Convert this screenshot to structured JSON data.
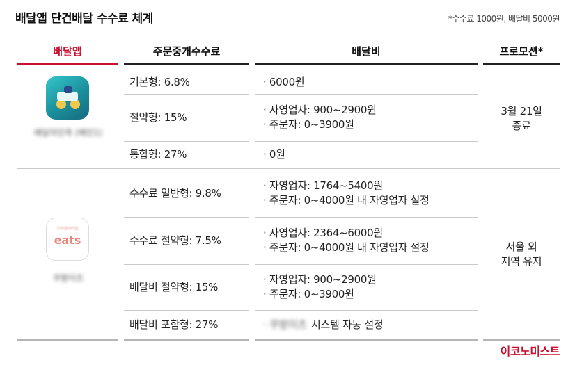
{
  "title": "배달앱 단건배달 수수료 체계",
  "note": "*수수료 1000원, 배달비 5000원",
  "headers": {
    "app": "배달앱",
    "fee": "주문중개수수료",
    "delivery": "배달비",
    "promo": "프로모션*"
  },
  "apps": [
    {
      "name": "배달의민족 (배민1)",
      "icon": "baemin-app-icon",
      "promo": "3월 21일 종료",
      "promo_lines": [
        "3월 21일",
        "종료"
      ],
      "rows": [
        {
          "fee": "기본형: 6.8%",
          "delivery": [
            "· 6000원"
          ]
        },
        {
          "fee": "절약형: 15%",
          "delivery": [
            "· 자영업자: 900~2900원",
            "· 주문자: 0~3900원"
          ]
        },
        {
          "fee": "통합형: 27%",
          "delivery": [
            "· 0원"
          ]
        }
      ]
    },
    {
      "name": "쿠팡이츠",
      "icon": "coupang-eats-app-icon",
      "icon_text": "eats",
      "promo": "서울 외 지역 유지",
      "promo_lines": [
        "서울 외",
        "지역 유지"
      ],
      "rows": [
        {
          "fee": "수수료 일반형: 9.8%",
          "delivery": [
            "· 자영업자: 1764~5400원",
            "· 주문자: 0~4000원 내 자영업자 설정"
          ]
        },
        {
          "fee": "수수료 절약형: 7.5%",
          "delivery": [
            "· 자영업자: 2364~6000원",
            "· 주문자: 0~4000원 내 자영업자 설정"
          ]
        },
        {
          "fee": "배달비 절약형: 15%",
          "delivery": [
            "· 자영업자: 900~2900원",
            "· 주문자: 0~3900원"
          ]
        },
        {
          "fee": "배달비 포함형: 27%",
          "delivery_prefix": "· 쿠팡이츠",
          "delivery": [
            "시스템 자동 설정"
          ]
        }
      ]
    }
  ],
  "source": "이코노미스트",
  "colors": {
    "accent": "#c8102e",
    "rule": "#222222",
    "divider": "#c9c9c9"
  }
}
